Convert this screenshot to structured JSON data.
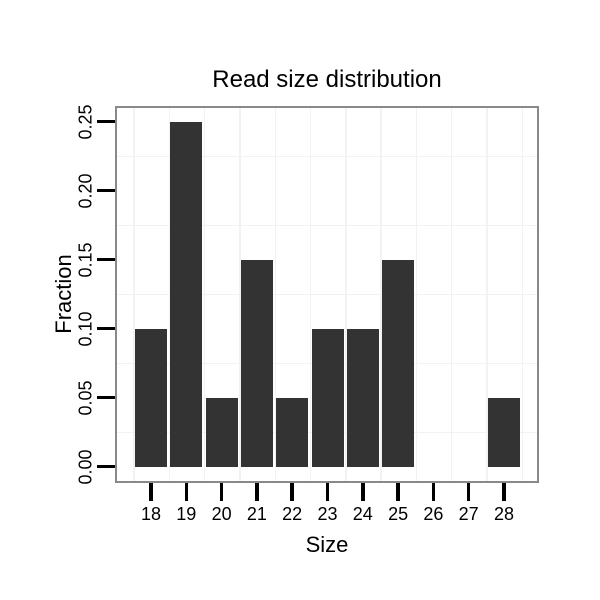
{
  "chart_data": {
    "type": "bar",
    "title": "Read size distribution",
    "xlabel": "Size",
    "ylabel": "Fraction",
    "categories": [
      "18",
      "19",
      "20",
      "21",
      "22",
      "23",
      "24",
      "25",
      "26",
      "27",
      "28"
    ],
    "values": [
      0.1,
      0.25,
      0.05,
      0.15,
      0.05,
      0.1,
      0.1,
      0.15,
      0,
      0,
      0.05
    ],
    "y_tick_labels": [
      "0.00",
      "0.05",
      "0.10",
      "0.15",
      "0.20",
      "0.25"
    ],
    "y_tick_values": [
      0.0,
      0.05,
      0.1,
      0.15,
      0.2,
      0.25
    ],
    "ylim": [
      0,
      0.25
    ],
    "grid": "minor-only",
    "legend_position": "none",
    "colors": {
      "bar_fill": "#333333",
      "panel_border": "#898989",
      "gridline": "#f2f2f2",
      "tick": "#000000",
      "text": "#000000",
      "background": "#ffffff"
    }
  }
}
